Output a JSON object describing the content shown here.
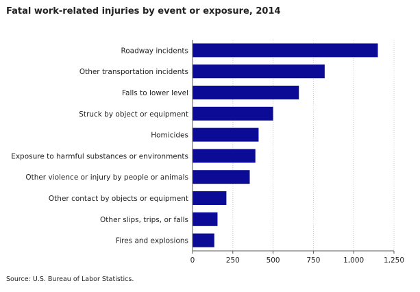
{
  "title": "Fatal work-related injuries by event or exposure, 2014",
  "source": "Source: U.S. Bureau of Labor Statistics.",
  "chart_data": {
    "type": "bar",
    "orientation": "horizontal",
    "categories": [
      "Roadway incidents",
      "Other transportation incidents",
      "Falls to lower level",
      "Struck by object or equipment",
      "Homicides",
      "Exposure to harmful substances or environments",
      "Other violence or injury by people or animals",
      "Other contact by objects or equipment",
      "Other slips, trips, or falls",
      "Fires and explosions"
    ],
    "values": [
      1150,
      820,
      660,
      500,
      410,
      390,
      355,
      210,
      155,
      135
    ],
    "xlim": [
      0,
      1250
    ],
    "xticks": [
      0,
      250,
      500,
      750,
      1000,
      1250
    ],
    "xtick_labels": [
      "0",
      "250",
      "500",
      "750",
      "1,000",
      "1,250"
    ],
    "grid": "vertical dotted",
    "bar_color": "#0b0b96",
    "legend": "none"
  }
}
